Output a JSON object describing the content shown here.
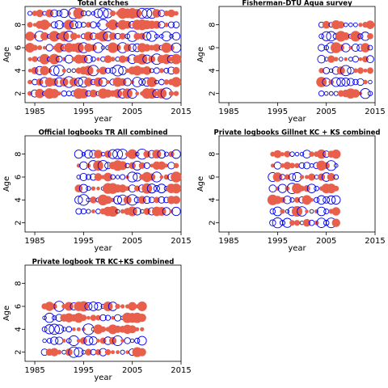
{
  "colors": {
    "positive": "#e8604c",
    "negative": "#0000ee",
    "frame": "#000000"
  },
  "chart_data": [
    {
      "type": "scatter",
      "title": "Total catches",
      "xlabel": "year",
      "ylabel": "Age",
      "xlim": [
        1983,
        2015
      ],
      "ylim": [
        1.2,
        9.6
      ],
      "xticks": [
        1985,
        1995,
        2005,
        2015
      ],
      "yticks": [
        2,
        4,
        6,
        8
      ],
      "x_start": 1984,
      "x_end": 2014,
      "y_start": 2,
      "y_end": 9,
      "encoding": "bubble size = residual magnitude; filled = positive, open = negative",
      "points": []
    },
    {
      "type": "scatter",
      "title": "Fisherman-DTU Aqua survey",
      "xlabel": "year",
      "ylabel": "Age",
      "xlim": [
        1983,
        2015
      ],
      "ylim": [
        1.2,
        9.6
      ],
      "xticks": [
        1985,
        1995,
        2005,
        2015
      ],
      "yticks": [
        2,
        4,
        6,
        8
      ],
      "x_start": 2004,
      "x_end": 2014,
      "y_start": 2,
      "y_end": 8,
      "encoding": "bubble size = residual magnitude; filled = positive, open = negative",
      "points": []
    },
    {
      "type": "scatter",
      "title": "Official logbooks TR All combined",
      "xlabel": "year",
      "ylabel": "Age",
      "xlim": [
        1983,
        2015
      ],
      "ylim": [
        1.2,
        9.6
      ],
      "xticks": [
        1985,
        1995,
        2005,
        2015
      ],
      "yticks": [
        2,
        4,
        6,
        8
      ],
      "x_start": 1994,
      "x_end": 2014,
      "y_start": 3,
      "y_end": 8,
      "encoding": "bubble size = residual magnitude; filled = positive, open = negative",
      "points": []
    },
    {
      "type": "scatter",
      "title": "Private logbooks Gillnet KC + KS combined",
      "xlabel": "year",
      "ylabel": "Age",
      "xlim": [
        1983,
        2015
      ],
      "ylim": [
        1.2,
        9.6
      ],
      "xticks": [
        1985,
        1995,
        2005,
        2015
      ],
      "yticks": [
        2,
        4,
        6,
        8
      ],
      "x_start": 1994,
      "x_end": 2007,
      "y_start": 2,
      "y_end": 8,
      "encoding": "bubble size = residual magnitude; filled = positive, open = negative",
      "points": []
    },
    {
      "type": "scatter",
      "title": "Private logbook TR KC+KS combined",
      "xlabel": "year",
      "ylabel": "Age",
      "xlim": [
        1983,
        2015
      ],
      "ylim": [
        1.2,
        9.6
      ],
      "xticks": [
        1985,
        1995,
        2005,
        2015
      ],
      "yticks": [
        2,
        4,
        6,
        8
      ],
      "x_start": 1987,
      "x_end": 2007,
      "y_start": 2,
      "y_end": 6,
      "encoding": "bubble size = residual magnitude; filled = positive, open = negative",
      "points": []
    }
  ]
}
